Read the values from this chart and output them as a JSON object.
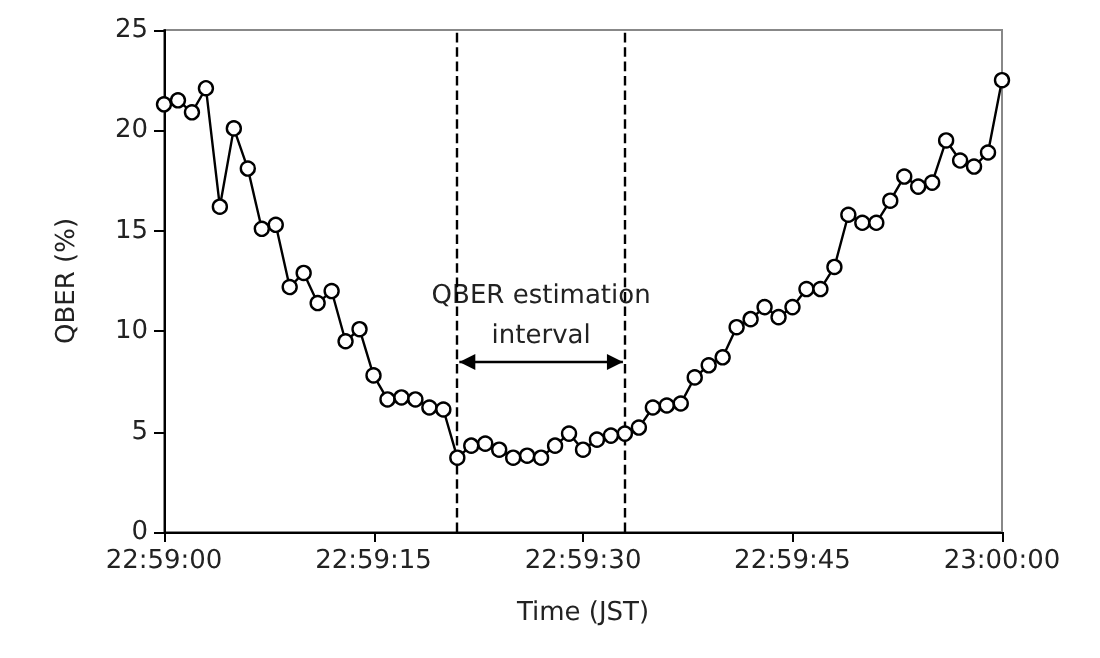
{
  "chart_data": {
    "type": "line",
    "xlabel": "Time (JST)",
    "ylabel": "QBER (%)",
    "x": [
      22.983333,
      22.983611,
      22.983889,
      22.984167,
      22.984444,
      22.984722,
      22.985,
      22.985278,
      22.985556,
      22.985833,
      22.986111,
      22.986389,
      22.986667,
      22.986944,
      22.987222,
      22.9875,
      22.987778,
      22.988056,
      22.988333,
      22.988611,
      22.988889,
      22.989167,
      22.989444,
      22.989722,
      22.99,
      22.990278,
      22.990556,
      22.990833,
      22.991111,
      22.991389,
      22.991667,
      22.991944,
      22.992222,
      22.9925,
      22.992778,
      22.993056,
      22.993333,
      22.993611,
      22.993889,
      22.994167,
      22.994444,
      22.994722,
      22.995,
      22.995278,
      22.995556,
      22.995833,
      22.996111,
      22.996389,
      22.996667,
      22.996944,
      22.997222,
      22.9975,
      22.997778,
      22.998056,
      22.998333,
      22.998611,
      22.998889,
      22.999167,
      22.999444,
      22.999722,
      23.0
    ],
    "series": [
      {
        "color": "#000000",
        "values": [
          21.3,
          21.5,
          20.9,
          22.1,
          16.2,
          20.1,
          18.1,
          15.1,
          15.3,
          12.2,
          12.9,
          11.4,
          12.0,
          9.5,
          10.1,
          7.8,
          6.6,
          6.7,
          6.6,
          6.2,
          6.1,
          3.7,
          4.3,
          4.4,
          4.1,
          3.7,
          3.8,
          3.7,
          4.3,
          4.9,
          4.1,
          4.6,
          4.8,
          4.9,
          5.2,
          6.2,
          6.3,
          6.4,
          7.7,
          8.3,
          8.7,
          10.2,
          10.6,
          11.2,
          10.7,
          11.2,
          12.1,
          12.1,
          13.2,
          15.8,
          15.4,
          15.4,
          16.5,
          17.7,
          17.2,
          17.4,
          19.5,
          18.5,
          18.2,
          18.9,
          22.5
        ]
      }
    ],
    "xlim": [
      22.983333,
      23.0
    ],
    "xticks": [
      {
        "value": 22.983333,
        "label": "22:59:00"
      },
      {
        "value": 22.9875,
        "label": "22:59:15"
      },
      {
        "value": 22.991667,
        "label": "22:59:30"
      },
      {
        "value": 22.995833,
        "label": "22:59:45"
      },
      {
        "value": 23.0,
        "label": "23:00:00"
      }
    ],
    "ylim": [
      0,
      25
    ],
    "yticks": [
      0,
      5,
      10,
      15,
      20,
      25
    ],
    "ref_lines": [
      {
        "axis": "x",
        "value": 22.989167,
        "line_style": "dashed",
        "color": "#000000"
      },
      {
        "axis": "x",
        "value": 22.9925,
        "line_style": "dashed",
        "color": "#000000"
      }
    ],
    "annotations": [
      "QBER estimation\ninterval"
    ],
    "marker": "circle",
    "line_style": "solid"
  }
}
